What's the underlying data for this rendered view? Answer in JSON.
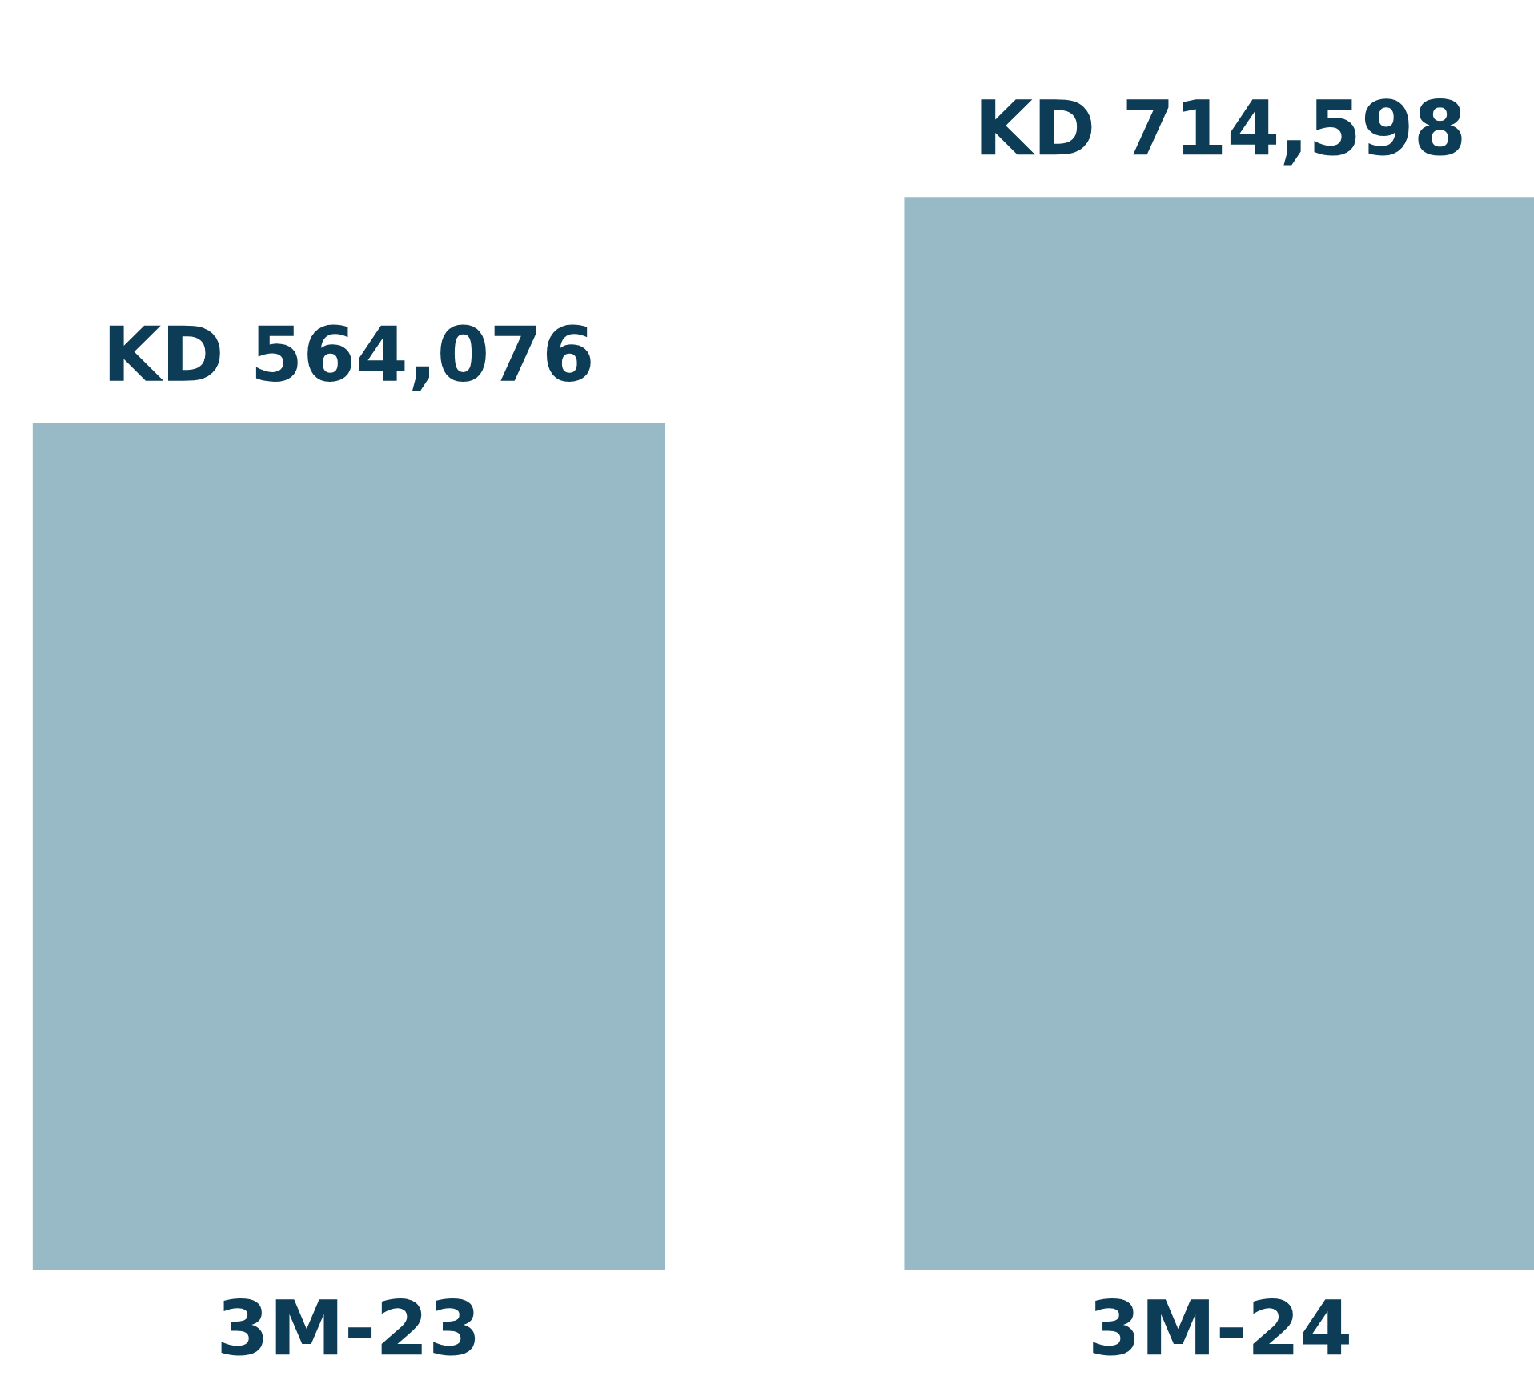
{
  "chart_data": {
    "type": "bar",
    "categories": [
      "3M-23",
      "3M-24"
    ],
    "values": [
      564076,
      714598
    ],
    "color": "#98bac6",
    "value_labels": [
      "KD 564,076",
      "KD 714,598"
    ],
    "grid": false,
    "legend": false
  }
}
